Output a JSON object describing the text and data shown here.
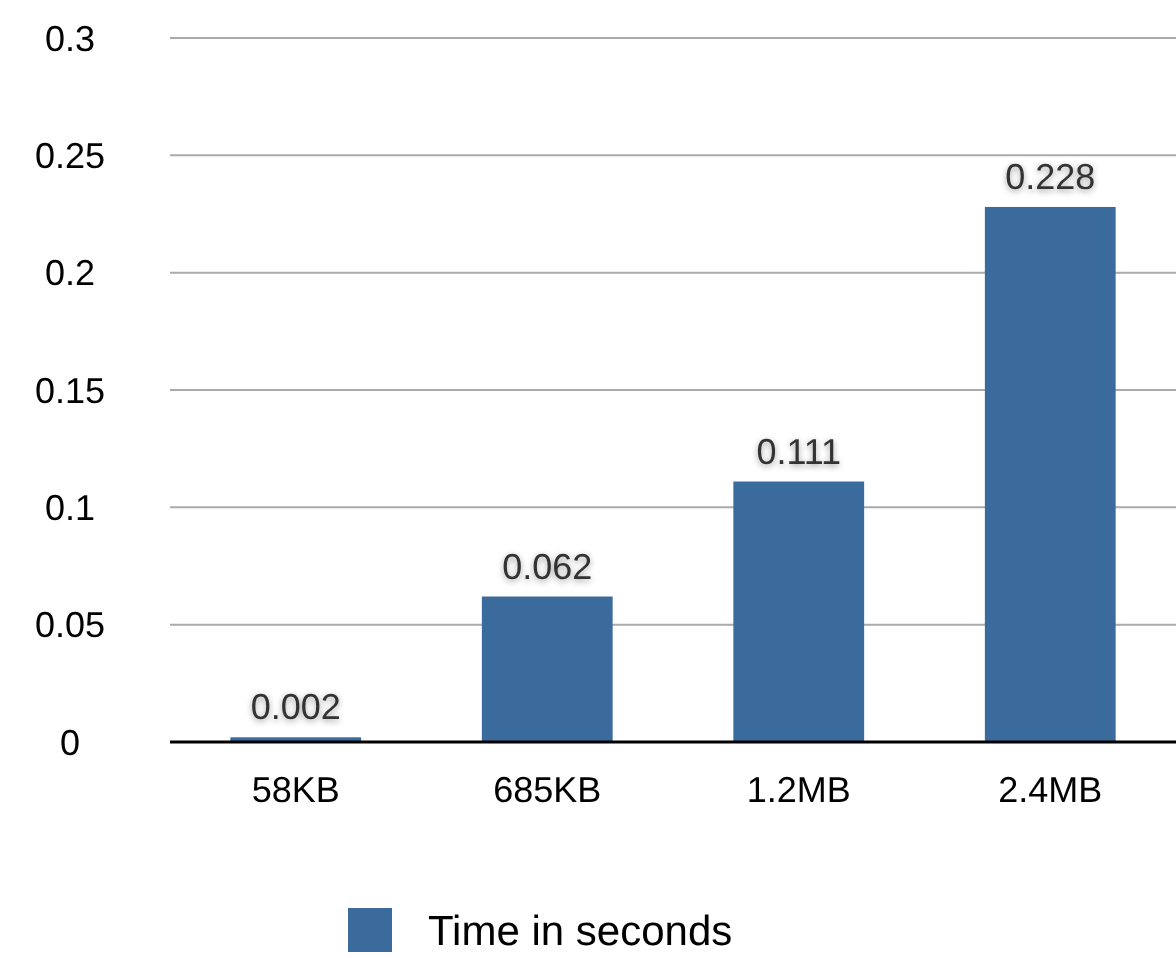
{
  "chart_data": {
    "type": "bar",
    "categories": [
      "58KB",
      "685KB",
      "1.2MB",
      "2.4MB"
    ],
    "series": [
      {
        "name": "Time in seconds",
        "color": "#3b6b9c",
        "values": [
          0.002,
          0.062,
          0.111,
          0.228
        ]
      }
    ],
    "ylim": [
      0,
      0.3
    ],
    "yticks": [
      0,
      0.05,
      0.1,
      0.15,
      0.2,
      0.25,
      0.3
    ],
    "grid": "y",
    "legend": "bottom",
    "data_labels": true
  }
}
